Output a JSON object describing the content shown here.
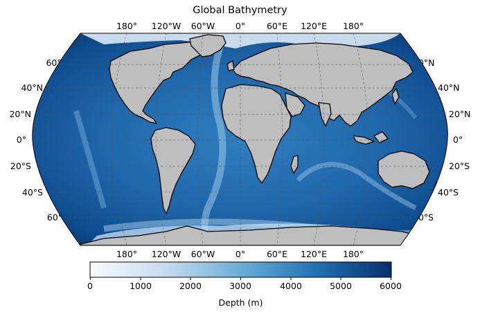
{
  "title": "Global Bathymetry",
  "lon_labels_top": [
    "180°",
    "120°W",
    "60°W",
    "0°",
    "60°E",
    "120°E",
    "180°"
  ],
  "lon_labels_bottom": [
    "180°",
    "120°W",
    "60°W",
    "0°",
    "60°E",
    "120°E",
    "180°"
  ],
  "lat_labels_left": [
    "60°N",
    "40°N",
    "20°N",
    "0°",
    "20°S",
    "40°S",
    "60°S"
  ],
  "lat_labels_right": [
    "60°N",
    "40°N",
    "20°N",
    "0°",
    "20°S",
    "40°S",
    "60°S"
  ],
  "colorbar": {
    "label": "Depth (m)",
    "ticks": [
      "0",
      "1000",
      "2000",
      "3000",
      "4000",
      "5000",
      "6000"
    ],
    "range": [
      0,
      6000
    ],
    "colormap": "Blues",
    "colors": [
      "#f7fbff",
      "#c6dbef",
      "#6baed6",
      "#2171b5",
      "#08306b"
    ]
  },
  "colors": {
    "land": "#bebebe",
    "coastline": "#000000",
    "gridline": "#555555",
    "shallow": "#f7fbff",
    "deep": "#08306b"
  }
}
